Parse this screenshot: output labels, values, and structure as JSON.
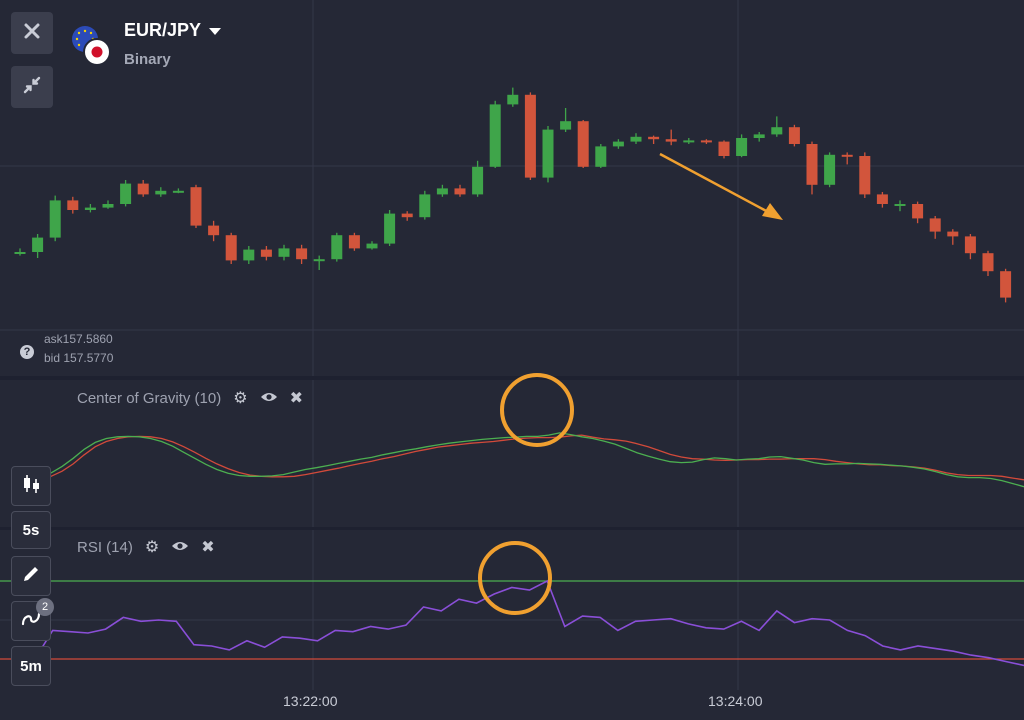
{
  "header": {
    "pair": "EUR/JPY",
    "type": "Binary",
    "close_icon": "close-icon",
    "collapse_icon": "collapse-icon"
  },
  "quotes": {
    "ask": "ask157.5860",
    "bid": "bid 157.5770"
  },
  "indicators": [
    {
      "name": "Center of Gravity (10)"
    },
    {
      "name": "RSI (14)"
    }
  ],
  "toolbar": {
    "chart_type_icon": "candles-icon",
    "interval": "5s",
    "draw_icon": "pencil-icon",
    "indicator_icon": "wave-icon",
    "indicator_count": "2",
    "timeframe": "5m"
  },
  "time_axis": [
    "13:22:00",
    "13:24:00"
  ],
  "colors": {
    "background": "#252836",
    "up": "#3fa54a",
    "down": "#d2553c",
    "rsi": "#8a4fd8",
    "highlight": "#f0a030",
    "cog_main": "#d24a3a",
    "cog_signal": "#4caf50"
  },
  "chart_data": [
    {
      "type": "candlestick",
      "title": "EUR/JPY",
      "candles": [
        {
          "o": 0,
          "c": 0,
          "h": 0.3,
          "l": -0.3
        },
        {
          "o": 0,
          "c": 1.2,
          "h": 1.5,
          "l": -0.5
        },
        {
          "o": 1.2,
          "c": 4.3,
          "h": 4.7,
          "l": 0.9
        },
        {
          "o": 4.3,
          "c": 3.5,
          "h": 4.6,
          "l": 3.2
        },
        {
          "o": 3.5,
          "c": 3.7,
          "h": 4.0,
          "l": 3.3
        },
        {
          "o": 3.7,
          "c": 4.0,
          "h": 4.3,
          "l": 3.6
        },
        {
          "o": 4.0,
          "c": 5.7,
          "h": 6.0,
          "l": 3.8
        },
        {
          "o": 5.7,
          "c": 4.8,
          "h": 6.0,
          "l": 4.6
        },
        {
          "o": 4.8,
          "c": 5.1,
          "h": 5.4,
          "l": 4.6
        },
        {
          "o": 5.1,
          "c": 5.1,
          "h": 5.3,
          "l": 4.9
        },
        {
          "o": 5.4,
          "c": 2.2,
          "h": 5.6,
          "l": 2.0
        },
        {
          "o": 2.2,
          "c": 1.4,
          "h": 2.6,
          "l": 0.9
        },
        {
          "o": 1.4,
          "c": -0.7,
          "h": 1.6,
          "l": -1.0
        },
        {
          "o": -0.7,
          "c": 0.2,
          "h": 0.5,
          "l": -1.0
        },
        {
          "o": 0.2,
          "c": -0.4,
          "h": 0.5,
          "l": -0.7
        },
        {
          "o": -0.4,
          "c": 0.3,
          "h": 0.6,
          "l": -0.7
        },
        {
          "o": 0.3,
          "c": -0.6,
          "h": 0.6,
          "l": -1.0
        },
        {
          "o": -0.6,
          "c": -0.6,
          "h": -0.3,
          "l": -1.5
        },
        {
          "o": -0.6,
          "c": 1.4,
          "h": 1.6,
          "l": -0.8
        },
        {
          "o": 1.4,
          "c": 0.3,
          "h": 1.6,
          "l": 0.1
        },
        {
          "o": 0.3,
          "c": 0.7,
          "h": 0.9,
          "l": 0.2
        },
        {
          "o": 0.7,
          "c": 3.2,
          "h": 3.5,
          "l": 0.5
        },
        {
          "o": 3.2,
          "c": 2.9,
          "h": 3.4,
          "l": 2.6
        },
        {
          "o": 2.9,
          "c": 4.8,
          "h": 5.1,
          "l": 2.7
        },
        {
          "o": 4.8,
          "c": 5.3,
          "h": 5.6,
          "l": 4.6
        },
        {
          "o": 5.3,
          "c": 4.8,
          "h": 5.6,
          "l": 4.6
        },
        {
          "o": 4.8,
          "c": 7.1,
          "h": 7.6,
          "l": 4.6
        },
        {
          "o": 7.1,
          "c": 12.3,
          "h": 12.6,
          "l": 7.0
        },
        {
          "o": 12.3,
          "c": 13.1,
          "h": 13.7,
          "l": 12.1
        },
        {
          "o": 13.1,
          "c": 6.2,
          "h": 13.3,
          "l": 6.0
        },
        {
          "o": 6.2,
          "c": 10.2,
          "h": 10.5,
          "l": 5.8
        },
        {
          "o": 10.2,
          "c": 10.9,
          "h": 12.0,
          "l": 10.0
        },
        {
          "o": 10.9,
          "c": 7.1,
          "h": 11.0,
          "l": 7.0
        },
        {
          "o": 7.1,
          "c": 8.8,
          "h": 9.0,
          "l": 7.0
        },
        {
          "o": 8.8,
          "c": 9.2,
          "h": 9.4,
          "l": 8.6
        },
        {
          "o": 9.2,
          "c": 9.6,
          "h": 9.9,
          "l": 9.0
        },
        {
          "o": 9.6,
          "c": 9.4,
          "h": 9.7,
          "l": 9.0
        },
        {
          "o": 9.4,
          "c": 9.2,
          "h": 10.2,
          "l": 8.9
        },
        {
          "o": 9.2,
          "c": 9.3,
          "h": 9.5,
          "l": 9.0
        },
        {
          "o": 9.3,
          "c": 9.2,
          "h": 9.4,
          "l": 9.0
        },
        {
          "o": 9.2,
          "c": 8.0,
          "h": 9.3,
          "l": 7.8
        },
        {
          "o": 8.0,
          "c": 9.5,
          "h": 9.8,
          "l": 7.9
        },
        {
          "o": 9.5,
          "c": 9.8,
          "h": 10.0,
          "l": 9.2
        },
        {
          "o": 9.8,
          "c": 10.4,
          "h": 11.3,
          "l": 9.6
        },
        {
          "o": 10.4,
          "c": 9.0,
          "h": 10.6,
          "l": 8.8
        },
        {
          "o": 9.0,
          "c": 5.6,
          "h": 9.2,
          "l": 4.8
        },
        {
          "o": 5.6,
          "c": 8.1,
          "h": 8.3,
          "l": 5.4
        },
        {
          "o": 8.1,
          "c": 8.0,
          "h": 8.3,
          "l": 7.3
        },
        {
          "o": 8.0,
          "c": 4.8,
          "h": 8.3,
          "l": 4.5
        },
        {
          "o": 4.8,
          "c": 4.0,
          "h": 5.0,
          "l": 3.7
        },
        {
          "o": 4.0,
          "c": 4.0,
          "h": 4.3,
          "l": 3.4
        },
        {
          "o": 4.0,
          "c": 2.8,
          "h": 4.2,
          "l": 2.4
        },
        {
          "o": 2.8,
          "c": 1.7,
          "h": 3.0,
          "l": 1.1
        },
        {
          "o": 1.7,
          "c": 1.3,
          "h": 1.9,
          "l": 0.6
        },
        {
          "o": 1.3,
          "c": -0.1,
          "h": 1.5,
          "l": -0.6
        },
        {
          "o": -0.1,
          "c": -1.6,
          "h": 0.1,
          "l": -2.0
        },
        {
          "o": -1.6,
          "c": -3.8,
          "h": -1.4,
          "l": -4.2
        }
      ]
    },
    {
      "type": "line",
      "title": "Center of Gravity (10)",
      "series": [
        {
          "values": [
            -4.2,
            -3.8,
            -2.6,
            -0.9,
            1.2,
            3.1,
            4.3,
            5.0,
            5.4,
            5.5,
            5.4,
            5.0,
            4.2,
            3.1,
            1.8,
            0.4,
            -0.9,
            -2.0,
            -2.9,
            -3.5,
            -3.8,
            -3.9,
            -3.9,
            -3.8,
            -3.4,
            -2.9,
            -2.4,
            -1.9,
            -1.3,
            -0.8,
            -0.3,
            0.3,
            0.8,
            1.4,
            2.0,
            2.5,
            3.0,
            3.3,
            3.6,
            3.9,
            4.1,
            4.3,
            4.6,
            4.9,
            5.1,
            5.2,
            5.2,
            5.3,
            5.6,
            5.8,
            5.3,
            4.9,
            4.7,
            4.4,
            3.8,
            3.1,
            2.2,
            1.3,
            0.7,
            0.3,
            0.2,
            0.0,
            -0.1,
            0.0,
            0.1,
            0.1,
            0.2,
            0.2,
            0.3,
            0.3,
            0.3,
            0.1,
            -0.3,
            -0.6,
            -0.9,
            -1.1,
            -1.1,
            -1.3,
            -1.4,
            -1.6,
            -1.9,
            -2.4,
            -3.0,
            -3.4,
            -3.6,
            -3.6,
            -3.6,
            -3.8,
            -4.2,
            -4.6
          ]
        },
        {
          "values": [
            -3.7,
            -3.0,
            -1.5,
            0.4,
            2.5,
            4.1,
            5.0,
            5.4,
            5.5,
            5.4,
            5.0,
            4.3,
            3.2,
            1.8,
            0.4,
            -1.0,
            -2.2,
            -3.1,
            -3.6,
            -3.8,
            -3.8,
            -3.7,
            -3.4,
            -2.8,
            -2.2,
            -1.8,
            -1.3,
            -0.8,
            -0.3,
            0.2,
            0.6,
            1.2,
            1.7,
            2.2,
            2.6,
            3.1,
            3.5,
            3.9,
            4.2,
            4.5,
            4.8,
            5.0,
            5.2,
            5.3,
            5.5,
            5.5,
            5.8,
            6.3,
            5.9,
            5.4,
            5.0,
            4.4,
            3.7,
            2.7,
            1.7,
            0.9,
            0.2,
            -0.4,
            -0.6,
            -0.5,
            0.1,
            0.5,
            0.3,
            0.0,
            0.2,
            0.3,
            0.7,
            0.8,
            0.4,
            0.0,
            -0.6,
            -1.0,
            -0.9,
            -0.9,
            -0.8,
            -0.9,
            -1.0,
            -1.2,
            -1.4,
            -1.7,
            -2.1,
            -2.7,
            -3.4,
            -3.9,
            -4.1,
            -4.1,
            -4.3,
            -4.8,
            -5.5,
            -6.2
          ]
        }
      ]
    },
    {
      "type": "line",
      "title": "RSI (14)",
      "levels": [
        80,
        20
      ],
      "values": [
        20,
        42,
        41,
        40,
        43,
        52,
        49,
        50,
        49,
        31,
        30,
        27,
        34,
        29,
        37,
        36,
        34,
        42,
        41,
        45,
        43,
        46,
        60,
        57,
        66,
        63,
        70,
        75,
        73,
        80,
        45,
        53,
        52,
        42,
        49,
        50,
        51,
        47,
        44,
        43,
        49,
        42,
        57,
        48,
        51,
        50,
        42,
        38,
        30,
        27,
        30,
        28,
        26,
        23,
        21,
        18,
        15
      ]
    }
  ]
}
